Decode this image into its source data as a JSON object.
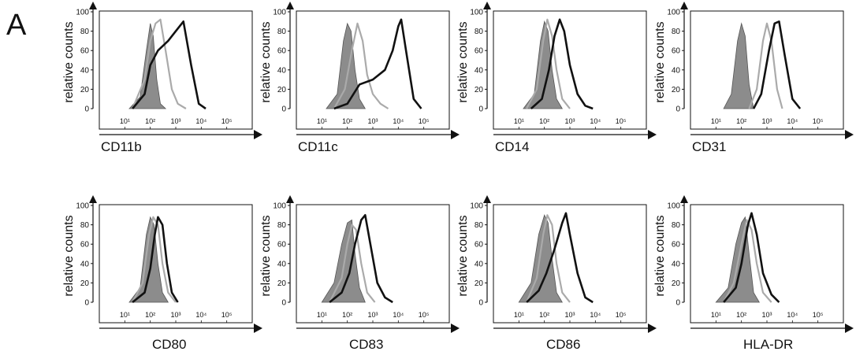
{
  "panel_label": "A",
  "chart_data": [
    {
      "type": "line",
      "xlabel": "CD11b",
      "ylabel": "relative counts",
      "xscale": "log",
      "xlim": [
        1,
        1000000
      ],
      "ylim": [
        0,
        100
      ],
      "x_ticks": [
        "10¹",
        "10²",
        "10³",
        "10⁴",
        "10⁵"
      ],
      "y_ticks": [
        "0",
        "20",
        "40",
        "60",
        "80",
        "100"
      ],
      "series": [
        {
          "style": "filled-gray",
          "x": [
            15,
            40,
            70,
            100,
            130,
            180,
            250,
            400
          ],
          "y": [
            0,
            12,
            60,
            88,
            75,
            30,
            5,
            0
          ]
        },
        {
          "style": "light-gray",
          "x": [
            20,
            60,
            100,
            160,
            250,
            400,
            700,
            1200,
            2500
          ],
          "y": [
            0,
            30,
            70,
            88,
            92,
            60,
            20,
            5,
            0
          ]
        },
        {
          "style": "black",
          "x": [
            20,
            60,
            100,
            200,
            500,
            1000,
            2000,
            4000,
            8000,
            15000
          ],
          "y": [
            0,
            15,
            45,
            60,
            70,
            80,
            90,
            45,
            5,
            0
          ]
        }
      ]
    },
    {
      "type": "line",
      "xlabel": "CD11c",
      "ylabel": "relative counts",
      "xscale": "log",
      "xlim": [
        1,
        1000000
      ],
      "ylim": [
        0,
        100
      ],
      "x_ticks": [
        "10¹",
        "10²",
        "10³",
        "10⁴",
        "10⁵"
      ],
      "y_ticks": [
        "0",
        "20",
        "40",
        "60",
        "80",
        "100"
      ],
      "series": [
        {
          "style": "filled-gray",
          "x": [
            15,
            40,
            70,
            100,
            140,
            200,
            300,
            500
          ],
          "y": [
            0,
            15,
            70,
            88,
            80,
            40,
            10,
            0
          ]
        },
        {
          "style": "light-gray",
          "x": [
            30,
            80,
            150,
            250,
            400,
            600,
            1000,
            2000,
            4000
          ],
          "y": [
            0,
            20,
            60,
            88,
            70,
            35,
            15,
            5,
            0
          ]
        },
        {
          "style": "black",
          "x": [
            30,
            100,
            300,
            1000,
            3000,
            6000,
            10000,
            13000,
            20000,
            40000,
            80000
          ],
          "y": [
            0,
            5,
            25,
            30,
            40,
            60,
            85,
            92,
            60,
            10,
            0
          ]
        }
      ]
    },
    {
      "type": "line",
      "xlabel": "CD14",
      "ylabel": "relative counts",
      "xscale": "log",
      "xlim": [
        1,
        1000000
      ],
      "ylim": [
        0,
        100
      ],
      "x_ticks": [
        "10¹",
        "10²",
        "10³",
        "10⁴",
        "10⁵"
      ],
      "y_ticks": [
        "0",
        "20",
        "40",
        "60",
        "80",
        "100"
      ],
      "series": [
        {
          "style": "filled-gray",
          "x": [
            15,
            40,
            70,
            100,
            140,
            200,
            300,
            500
          ],
          "y": [
            0,
            15,
            70,
            90,
            80,
            40,
            10,
            0
          ]
        },
        {
          "style": "light-gray",
          "x": [
            20,
            50,
            90,
            130,
            200,
            300,
            500,
            1000
          ],
          "y": [
            0,
            20,
            70,
            92,
            75,
            40,
            10,
            0
          ]
        },
        {
          "style": "black",
          "x": [
            30,
            80,
            150,
            250,
            400,
            600,
            1000,
            2000,
            4000,
            8000
          ],
          "y": [
            0,
            10,
            40,
            75,
            92,
            80,
            45,
            15,
            3,
            0
          ]
        }
      ]
    },
    {
      "type": "line",
      "xlabel": "CD31",
      "ylabel": "relative counts",
      "xscale": "log",
      "xlim": [
        1,
        1000000
      ],
      "ylim": [
        0,
        100
      ],
      "x_ticks": [
        "10¹",
        "10²",
        "10³",
        "10⁴",
        "10⁵"
      ],
      "y_ticks": [
        "0",
        "20",
        "40",
        "60",
        "80",
        "100"
      ],
      "series": [
        {
          "style": "filled-gray",
          "x": [
            20,
            40,
            70,
            100,
            140,
            200,
            300
          ],
          "y": [
            0,
            15,
            70,
            88,
            75,
            25,
            0
          ]
        },
        {
          "style": "light-gray",
          "x": [
            200,
            400,
            700,
            1000,
            1500,
            2500,
            4000
          ],
          "y": [
            0,
            20,
            70,
            88,
            70,
            20,
            0
          ]
        },
        {
          "style": "black",
          "x": [
            300,
            600,
            1200,
            2000,
            3000,
            5000,
            10000,
            20000
          ],
          "y": [
            0,
            15,
            60,
            88,
            90,
            55,
            10,
            0
          ]
        }
      ]
    },
    {
      "type": "line",
      "xlabel": "CD80",
      "ylabel": "relative counts",
      "xscale": "log",
      "xlim": [
        1,
        1000000
      ],
      "ylim": [
        0,
        100
      ],
      "x_ticks": [
        "10¹",
        "10²",
        "10³",
        "10⁴",
        "10⁵"
      ],
      "y_ticks": [
        "0",
        "20",
        "40",
        "60",
        "80",
        "100"
      ],
      "series": [
        {
          "style": "filled-gray",
          "x": [
            15,
            40,
            70,
            100,
            140,
            200,
            300,
            500
          ],
          "y": [
            0,
            15,
            70,
            88,
            80,
            40,
            10,
            0
          ]
        },
        {
          "style": "light-gray",
          "x": [
            20,
            50,
            90,
            130,
            200,
            300,
            500,
            1000
          ],
          "y": [
            0,
            20,
            70,
            88,
            80,
            40,
            10,
            0
          ]
        },
        {
          "style": "black",
          "x": [
            20,
            60,
            100,
            150,
            200,
            300,
            450,
            700,
            1200
          ],
          "y": [
            0,
            10,
            35,
            70,
            88,
            80,
            40,
            10,
            0
          ]
        }
      ]
    },
    {
      "type": "line",
      "xlabel": "CD83",
      "ylabel": "relative counts",
      "xscale": "log",
      "xlim": [
        1,
        1000000
      ],
      "ylim": [
        0,
        100
      ],
      "x_ticks": [
        "10¹",
        "10²",
        "10³",
        "10⁴",
        "10⁵"
      ],
      "y_ticks": [
        "0",
        "20",
        "40",
        "60",
        "80",
        "100"
      ],
      "series": [
        {
          "style": "filled-gray",
          "x": [
            10,
            30,
            60,
            100,
            150,
            200,
            300,
            500
          ],
          "y": [
            0,
            20,
            60,
            82,
            85,
            50,
            15,
            0
          ]
        },
        {
          "style": "light-gray",
          "x": [
            20,
            60,
            100,
            150,
            220,
            350,
            600,
            1200
          ],
          "y": [
            0,
            25,
            60,
            80,
            75,
            40,
            10,
            0
          ]
        },
        {
          "style": "black",
          "x": [
            20,
            60,
            120,
            200,
            350,
            500,
            800,
            1500,
            3000,
            6000
          ],
          "y": [
            0,
            10,
            30,
            60,
            85,
            90,
            60,
            20,
            5,
            0
          ]
        }
      ]
    },
    {
      "type": "line",
      "xlabel": "CD86",
      "ylabel": "relative counts",
      "xscale": "log",
      "xlim": [
        1,
        1000000
      ],
      "ylim": [
        0,
        100
      ],
      "x_ticks": [
        "10¹",
        "10²",
        "10³",
        "10⁴",
        "10⁵"
      ],
      "y_ticks": [
        "0",
        "20",
        "40",
        "60",
        "80",
        "100"
      ],
      "series": [
        {
          "style": "filled-gray",
          "x": [
            10,
            30,
            60,
            100,
            140,
            200,
            300,
            500
          ],
          "y": [
            0,
            20,
            70,
            90,
            82,
            45,
            10,
            0
          ]
        },
        {
          "style": "light-gray",
          "x": [
            20,
            50,
            90,
            130,
            200,
            300,
            500,
            1000
          ],
          "y": [
            0,
            25,
            70,
            90,
            80,
            40,
            10,
            0
          ]
        },
        {
          "style": "black",
          "x": [
            20,
            60,
            120,
            250,
            500,
            700,
            1000,
            2000,
            4000,
            8000
          ],
          "y": [
            0,
            12,
            30,
            55,
            82,
            92,
            70,
            30,
            5,
            0
          ]
        }
      ]
    },
    {
      "type": "line",
      "xlabel": "HLA-DR",
      "ylabel": "relative counts",
      "xscale": "log",
      "xlim": [
        1,
        1000000
      ],
      "ylim": [
        0,
        100
      ],
      "x_ticks": [
        "10¹",
        "10²",
        "10³",
        "10⁴",
        "10⁵"
      ],
      "y_ticks": [
        "0",
        "20",
        "40",
        "60",
        "80",
        "100"
      ],
      "series": [
        {
          "style": "filled-gray",
          "x": [
            10,
            30,
            60,
            100,
            140,
            200,
            300,
            500
          ],
          "y": [
            0,
            15,
            60,
            82,
            88,
            50,
            10,
            0
          ]
        },
        {
          "style": "light-gray",
          "x": [
            20,
            50,
            100,
            160,
            250,
            400,
            700,
            1500
          ],
          "y": [
            0,
            20,
            60,
            85,
            75,
            40,
            10,
            0
          ]
        },
        {
          "style": "black",
          "x": [
            20,
            60,
            100,
            180,
            250,
            400,
            700,
            1500,
            3000
          ],
          "y": [
            0,
            15,
            40,
            80,
            92,
            70,
            30,
            8,
            0
          ]
        }
      ]
    }
  ],
  "colors": {
    "filled_gray": "#8c8c8c",
    "light_gray": "#aaaaaa",
    "black": "#111111"
  }
}
